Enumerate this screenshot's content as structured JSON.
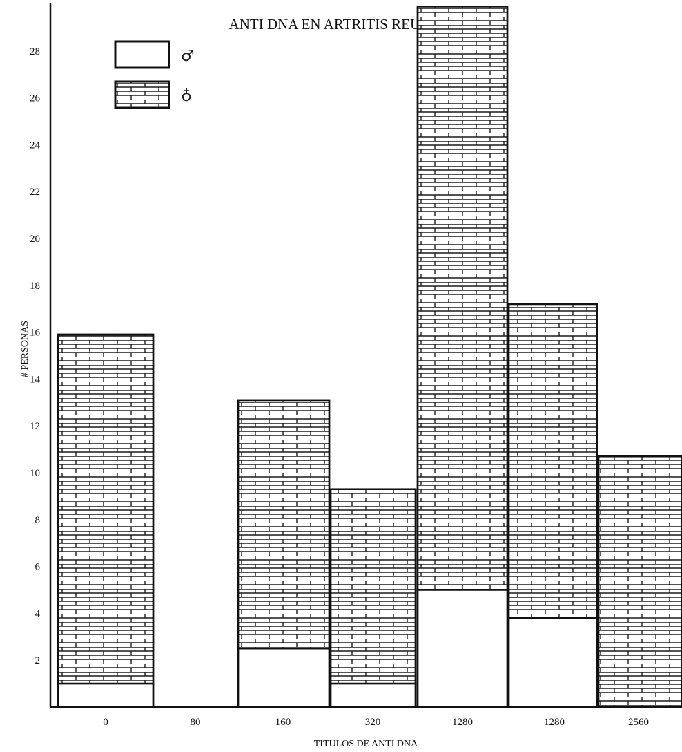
{
  "chart_data": {
    "type": "bar",
    "stacked": true,
    "title": "ANTI DNA EN ARTRITIS REUMATOIDEA",
    "xlabel": "TITULOS DE ANTI DNA",
    "ylabel": "# PERSONAS",
    "ylim": [
      0,
      30
    ],
    "yticks": [
      "2",
      "4",
      "6",
      "8",
      "10",
      "12",
      "14",
      "16",
      "18",
      "20",
      "22",
      "24",
      "26",
      "28"
    ],
    "categories": [
      "0",
      "80",
      "160",
      "320",
      "1280",
      "1280",
      "2560"
    ],
    "series": [
      {
        "name": "♂",
        "pattern": "blank",
        "values": [
          1,
          0,
          2.5,
          1,
          5,
          3.8,
          0
        ]
      },
      {
        "name": "♁",
        "pattern": "brick",
        "values": [
          14.9,
          0,
          10.6,
          8.3,
          24.9,
          13.4,
          10.7
        ]
      }
    ],
    "legend_position": "top-left",
    "grid": false
  }
}
